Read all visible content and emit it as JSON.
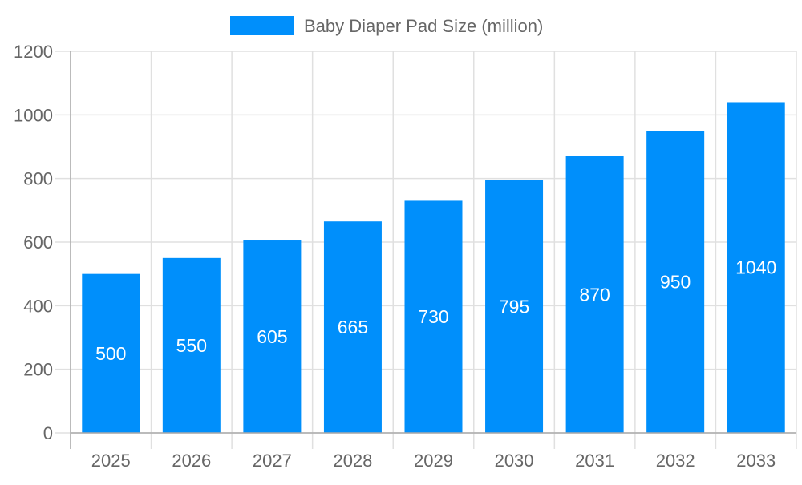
{
  "chart_data": {
    "type": "bar",
    "title": "",
    "xlabel": "",
    "ylabel": "",
    "categories": [
      "2025",
      "2026",
      "2027",
      "2028",
      "2029",
      "2030",
      "2031",
      "2032",
      "2033"
    ],
    "series": [
      {
        "name": "Baby Diaper Pad Size (million)",
        "values": [
          500,
          550,
          605,
          665,
          730,
          795,
          870,
          950,
          1040
        ],
        "color": "#008ffb"
      }
    ],
    "ylim": [
      0,
      1200
    ],
    "yticks": [
      0,
      200,
      400,
      600,
      800,
      1000,
      1200
    ],
    "grid": true,
    "legend": "top-center",
    "data_labels": true
  }
}
